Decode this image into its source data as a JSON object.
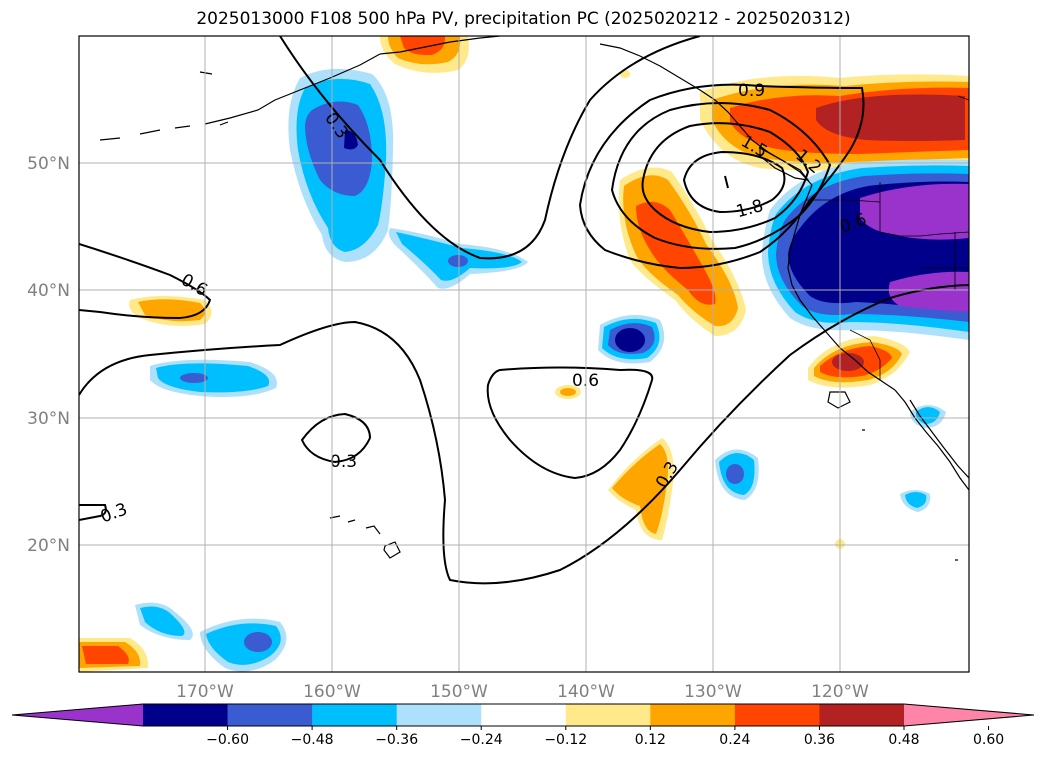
{
  "title": "2025013000 F108 500 hPa PV, precipitation PC (2025020212 - 2025020312)",
  "axes": {
    "lat_labels": [
      "50°N",
      "40°N",
      "30°N",
      "20°N"
    ],
    "lon_labels": [
      "170°W",
      "160°W",
      "150°W",
      "140°W",
      "130°W",
      "120°W"
    ],
    "tick_color": "#808080",
    "grid_color": "#b0b0b0"
  },
  "colorbar": {
    "colors": [
      "#9933cc",
      "#00008b",
      "#3a5bd1",
      "#00bfff",
      "#ade0fa",
      "#ffffff",
      "#ffe98a",
      "#ffa500",
      "#ff4500",
      "#b22222",
      "#ff85a8"
    ],
    "tick_labels": [
      "−0.60",
      "−0.48",
      "−0.36",
      "−0.24",
      "−0.12",
      "0.12",
      "0.24",
      "0.36",
      "0.48",
      "0.60"
    ],
    "extend": "both"
  },
  "contour_labels": [
    "0.3",
    "0.3",
    "0.3",
    "0.3",
    "0.6",
    "0.6",
    "0.6",
    "0.9",
    "1.2",
    "1.5",
    "1.8"
  ]
}
